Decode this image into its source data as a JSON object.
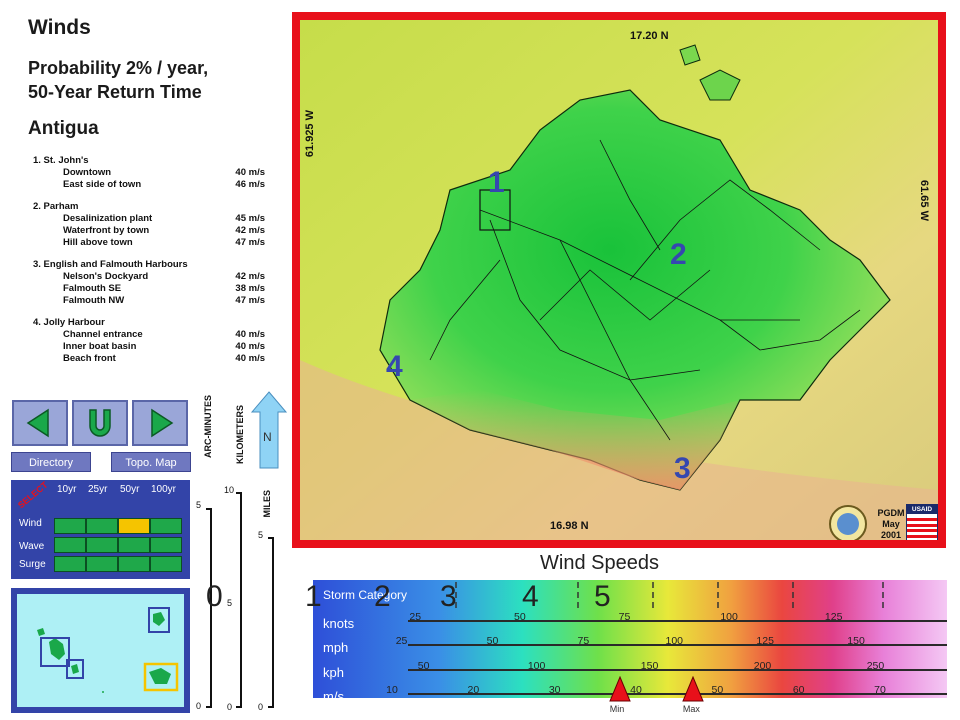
{
  "header": {
    "title": "Winds",
    "subtitle": "Probability 2% / year,\n50-Year Return Time",
    "island": "Antigua"
  },
  "sites": [
    {
      "title": "1. St. John's",
      "items": [
        {
          "name": "Downtown",
          "value": "40 m/s"
        },
        {
          "name": "East side of town",
          "value": "46 m/s"
        }
      ]
    },
    {
      "title": "2. Parham",
      "items": [
        {
          "name": "Desalinization plant",
          "value": "45 m/s"
        },
        {
          "name": "Waterfront by town",
          "value": "42 m/s"
        },
        {
          "name": "Hill above town",
          "value": "47 m/s"
        }
      ]
    },
    {
      "title": "3. English and Falmouth Harbours",
      "items": [
        {
          "name": "Nelson's Dockyard",
          "value": "42 m/s"
        },
        {
          "name": "Falmouth SE",
          "value": "38 m/s"
        },
        {
          "name": "Falmouth NW",
          "value": "47 m/s"
        }
      ]
    },
    {
      "title": "4. Jolly Harbour",
      "items": [
        {
          "name": "Channel entrance",
          "value": "40 m/s"
        },
        {
          "name": "Inner boat basin",
          "value": "40 m/s"
        },
        {
          "name": "Beach front",
          "value": "40 m/s"
        }
      ]
    }
  ],
  "nav": {
    "directory": "Directory",
    "topo_map": "Topo. Map",
    "north": "N"
  },
  "select_panel": {
    "label": "SELECT",
    "columns": [
      "10yr",
      "25yr",
      "50yr",
      "100yr"
    ],
    "rows": [
      "Wind",
      "Wave",
      "Surge"
    ],
    "selected": {
      "row": "Wind",
      "column": "50yr"
    },
    "selected_color": "#f5c400"
  },
  "scales": {
    "arc_minutes": {
      "label": "ARC-MINUTES",
      "ticks": [
        "5",
        "0"
      ]
    },
    "kilometers": {
      "label": "KILOMETERS",
      "ticks": [
        "10",
        "5",
        "0"
      ]
    },
    "miles": {
      "label": "MILES",
      "ticks": [
        "5",
        "0"
      ]
    }
  },
  "map": {
    "lat_top": "17.20 N",
    "lat_bottom": "16.98 N",
    "lon_left": "61.925 W",
    "lon_right": "61.65 W",
    "site_markers": [
      "1",
      "2",
      "3",
      "4"
    ],
    "credit": [
      "PGDM",
      "May",
      "2001"
    ],
    "logo_text": "USAID",
    "frame_color": "#e8101a"
  },
  "legend": {
    "title": "Wind Speeds",
    "storm_label": "Storm Category",
    "categories": [
      "0",
      "1",
      "2",
      "3",
      "4",
      "5"
    ],
    "rows": [
      {
        "unit": "knots",
        "ticks": [
          "25",
          "50",
          "75",
          "100",
          "125"
        ]
      },
      {
        "unit": "mph",
        "ticks": [
          "25",
          "50",
          "75",
          "100",
          "125",
          "150"
        ]
      },
      {
        "unit": "kph",
        "ticks": [
          "50",
          "100",
          "150",
          "200",
          "250"
        ]
      },
      {
        "unit": "m/s",
        "ticks": [
          "10",
          "20",
          "30",
          "40",
          "50",
          "60",
          "70"
        ]
      }
    ],
    "min_label": "Min",
    "max_label": "Max",
    "min_value_ms": 38,
    "max_value_ms": 47,
    "marker_color": "#e8101a"
  }
}
